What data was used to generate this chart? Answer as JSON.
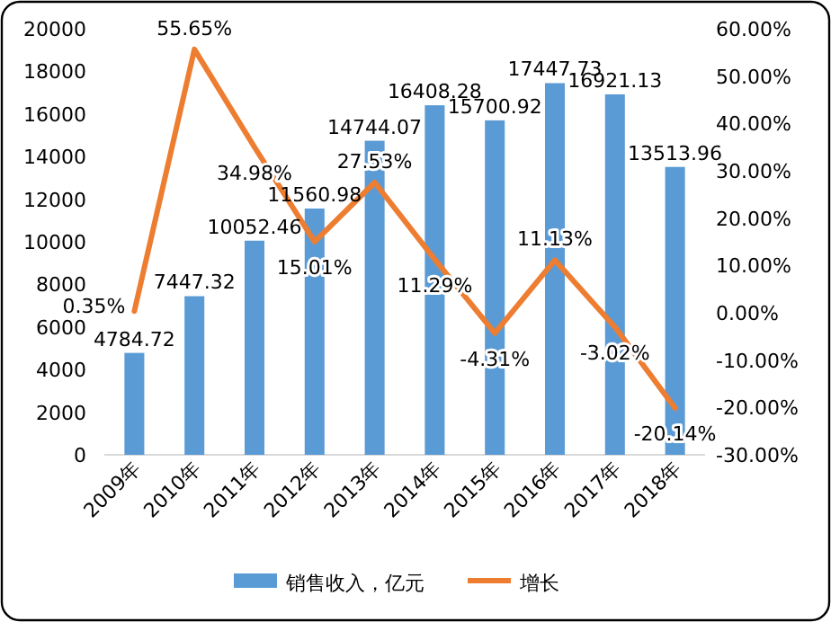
{
  "chart_data": {
    "type": "bar",
    "categories": [
      "2009年",
      "2010年",
      "2011年",
      "2012年",
      "2013年",
      "2014年",
      "2015年",
      "2016年",
      "2017年",
      "2018年"
    ],
    "series": [
      {
        "name": "销售收入，亿元",
        "color": "#5b9bd5",
        "values": [
          4784.72,
          7447.32,
          10052.46,
          11560.98,
          14744.07,
          16408.28,
          15700.92,
          17447.73,
          16921.13,
          13513.96
        ],
        "value_labels": [
          "4784.72",
          "7447.32",
          "10052.46",
          "11560.98",
          "14744.07",
          "16408.28",
          "15700.92",
          "17447.73",
          "16921.13",
          "13513.96"
        ]
      },
      {
        "name": "增长",
        "type": "line",
        "axis": "y2",
        "color": "#ed7d31",
        "values": [
          0.35,
          55.65,
          34.98,
          15.01,
          27.53,
          11.29,
          -4.31,
          11.13,
          -3.02,
          -20.14
        ],
        "value_labels": [
          "0.35%",
          "55.65%",
          "34.98%",
          "15.01%",
          "27.53%",
          "11.29%",
          "-4.31%",
          "11.13%",
          "-3.02%",
          "-20.14%"
        ]
      }
    ],
    "ylim": [
      0,
      20000
    ],
    "yticks": [
      0,
      2000,
      4000,
      6000,
      8000,
      10000,
      12000,
      14000,
      16000,
      18000,
      20000
    ],
    "y2lim": [
      -30,
      60
    ],
    "y2ticks": [
      {
        "value": -30,
        "label": "-30.00%"
      },
      {
        "value": -20,
        "label": "-20.00%"
      },
      {
        "value": -10,
        "label": "-10.00%"
      },
      {
        "value": 0,
        "label": "0.00%"
      },
      {
        "value": 10,
        "label": "10.00%"
      },
      {
        "value": 20,
        "label": "20.00%"
      },
      {
        "value": 30,
        "label": "30.00%"
      },
      {
        "value": 40,
        "label": "40.00%"
      },
      {
        "value": 50,
        "label": "50.00%"
      },
      {
        "value": 60,
        "label": "60.00%"
      }
    ],
    "legend": "bottom",
    "grid": false,
    "marker": "none",
    "line_style": "solid"
  }
}
